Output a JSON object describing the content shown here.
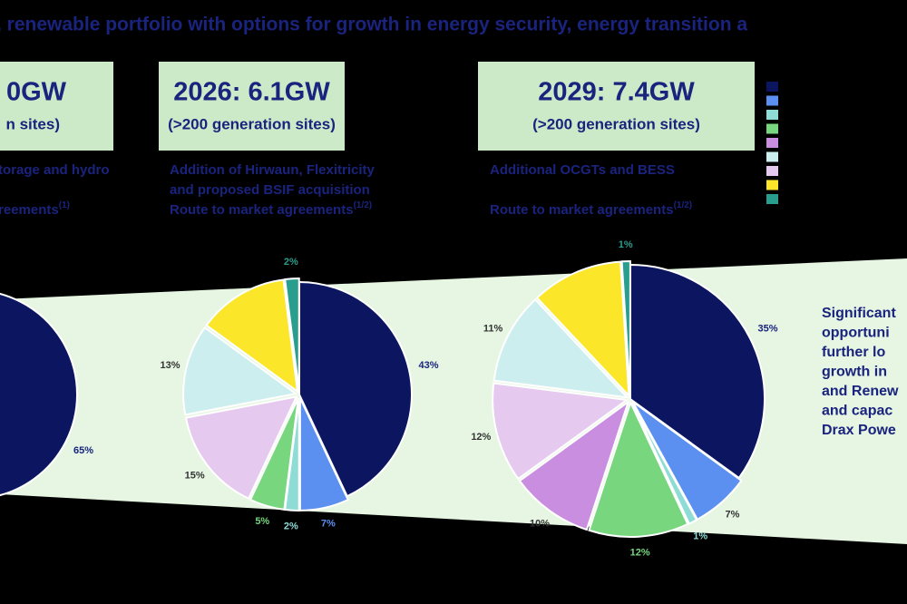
{
  "title": ", renewable portfolio with options for growth in energy security, energy transition a",
  "boxes": [
    {
      "heading": "0GW",
      "sub": "n sites)",
      "notes": [
        {
          "text": "torage and hydro"
        },
        {
          "text": "reements",
          "sup": "(1)"
        }
      ]
    },
    {
      "heading": "2026: 6.1GW",
      "sub": "(>200 generation sites)",
      "notes": [
        {
          "text": "Addition of Hirwaun, Flexitricity"
        },
        {
          "text": "and proposed BSIF acquisition"
        },
        {
          "text": "Route to market agreements",
          "sup": "(1/2)"
        }
      ]
    },
    {
      "heading": "2029: 7.4GW",
      "sub": "(>200 generation sites)",
      "notes": [
        {
          "text": "Additional OCGTs and BESS"
        },
        {
          "text": "Route to market agreements",
          "sup": "(1/2)"
        }
      ]
    }
  ],
  "legend_swatches": [
    "#0b1560",
    "#5b8ff0",
    "#8fdcd6",
    "#77d67e",
    "#c98ee0",
    "#cdeeee",
    "#e6c9ef",
    "#fbe62a",
    "#2a9e8e"
  ],
  "side_text": [
    "Significant",
    "opportuni",
    "further lo",
    "growth in",
    "and Renew",
    "and capac",
    "Drax Powe"
  ],
  "chart_data": [
    {
      "type": "pie",
      "values": [
        65
      ],
      "value_labels": [
        "65%"
      ],
      "colors": [
        "#0b1560"
      ]
    },
    {
      "type": "pie",
      "values": [
        43,
        7,
        2,
        5,
        15,
        13,
        13,
        2
      ],
      "value_labels": [
        "43%",
        "7%",
        "2%",
        "5%",
        "15%",
        "13%",
        null,
        "2%"
      ],
      "colors": [
        "#0b1560",
        "#5b8ff0",
        "#8fdcd6",
        "#77d67e",
        "#e6c9ef",
        "#cdeeee",
        "#fbe62a",
        "#2a9e8e"
      ]
    },
    {
      "type": "pie",
      "values": [
        35,
        7,
        1,
        12,
        10,
        12,
        11,
        11,
        1
      ],
      "value_labels": [
        "35%",
        "7%",
        "1%",
        "12%",
        "10%",
        "12%",
        "11%",
        null,
        "1%"
      ],
      "colors": [
        "#0b1560",
        "#5b8ff0",
        "#8fdcd6",
        "#77d67e",
        "#c98ee0",
        "#e6c9ef",
        "#cdeeee",
        "#fbe62a",
        "#2a9e8e"
      ]
    }
  ]
}
